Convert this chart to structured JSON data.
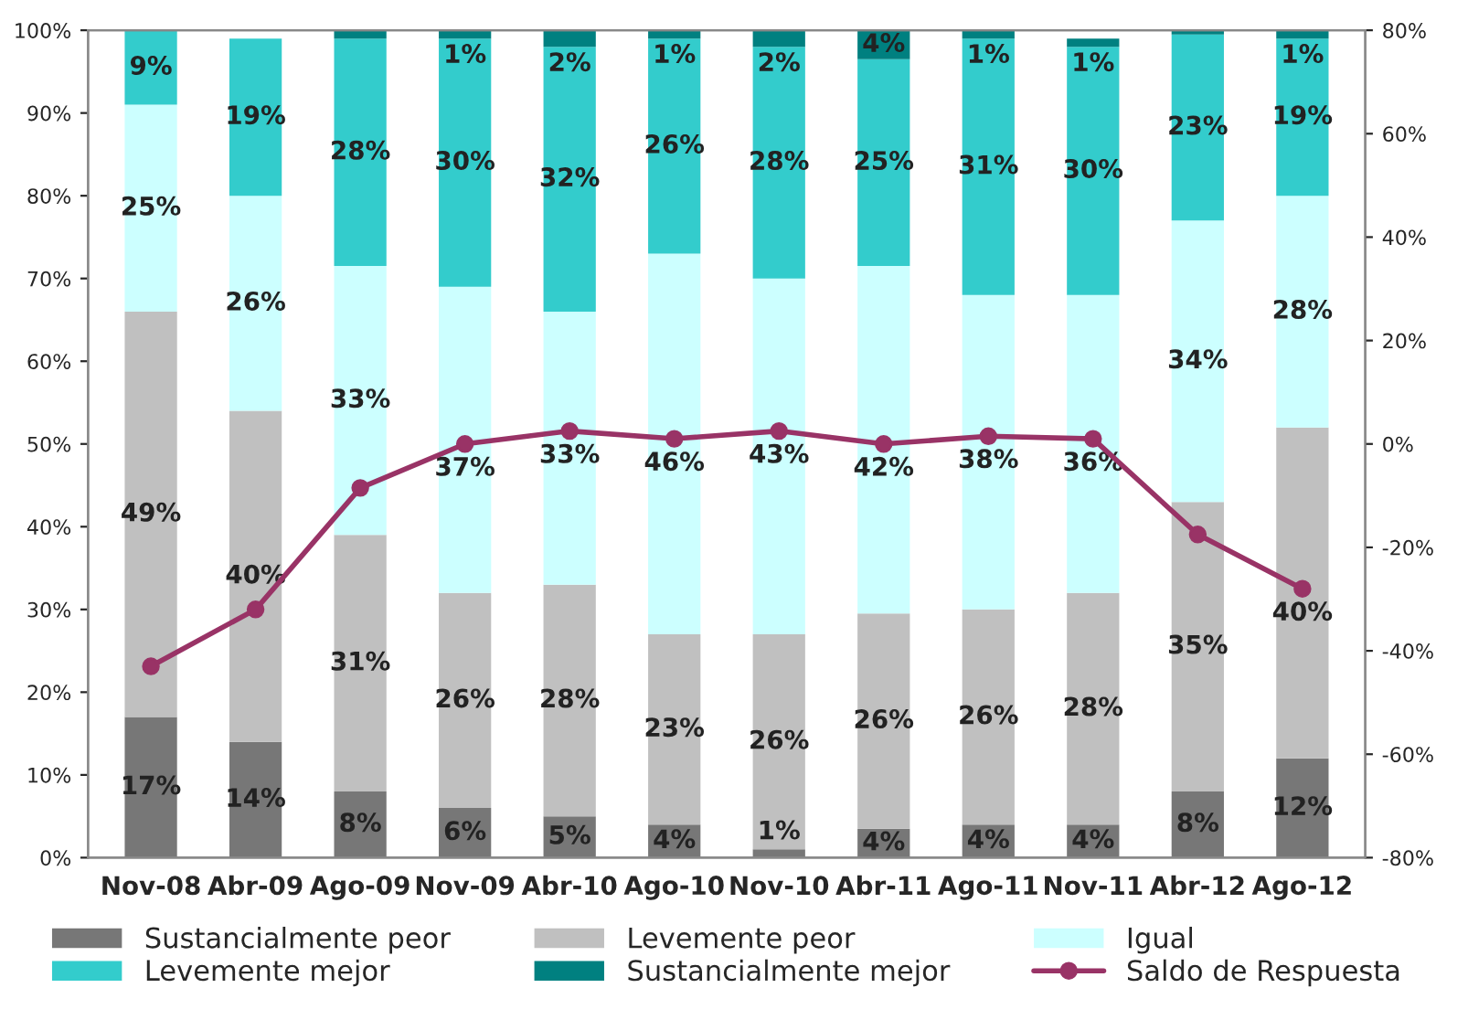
{
  "chart_data": {
    "type": "bar",
    "stacked": true,
    "categories": [
      "Nov-08",
      "Abr-09",
      "Ago-09",
      "Nov-09",
      "Abr-10",
      "Ago-10",
      "Nov-10",
      "Abr-11",
      "Ago-11",
      "Nov-11",
      "Abr-12",
      "Ago-12"
    ],
    "series": [
      {
        "name": "Sustancialmente peor",
        "color": "#777777",
        "values": [
          17,
          14,
          8,
          6,
          5,
          4,
          1,
          3.5,
          4,
          4,
          8,
          12
        ],
        "value_labels": [
          "17%",
          "14%",
          "8%",
          "6%",
          "5%",
          "4%",
          "1%",
          "4%",
          "4%",
          "4%",
          "8%",
          "12%"
        ]
      },
      {
        "name": "Levemente peor",
        "color": "#c0c0c0",
        "values": [
          49,
          40,
          31,
          26,
          28,
          23,
          26,
          26,
          26,
          28,
          35,
          40
        ],
        "value_labels": [
          "49%",
          "40%",
          "31%",
          "26%",
          "28%",
          "23%",
          "26%",
          "26%",
          "26%",
          "28%",
          "35%",
          "40%"
        ]
      },
      {
        "name": "Igual",
        "color": "#ccffff",
        "values": [
          25,
          26,
          32.5,
          37,
          33,
          46,
          43,
          42,
          38,
          36,
          34,
          28
        ],
        "value_labels": [
          "25%",
          "26%",
          "33%",
          "37%",
          "33%",
          "46%",
          "43%",
          "42%",
          "38%",
          "36%",
          "34%",
          "28%"
        ]
      },
      {
        "name": "Levemente mejor",
        "color": "#33cccc",
        "values": [
          9,
          19,
          27.5,
          30,
          32,
          26,
          28,
          25,
          31,
          30,
          22.5,
          19
        ],
        "value_labels": [
          "9%",
          "19%",
          "28%",
          "30%",
          "32%",
          "26%",
          "28%",
          "25%",
          "31%",
          "30%",
          "23%",
          "19%"
        ]
      },
      {
        "name": "Sustancialmente mejor",
        "color": "#008080",
        "values": [
          0,
          0,
          1,
          1,
          2,
          1,
          2,
          3.5,
          1,
          1,
          0.5,
          1
        ],
        "value_labels": [
          null,
          null,
          null,
          "1%",
          "2%",
          "1%",
          "2%",
          "4%",
          "1%",
          "1%",
          null,
          "1%"
        ]
      },
      {
        "name": "Saldo de Respuesta",
        "type": "line",
        "axis": "y2",
        "marker": "circle",
        "color": "#993366",
        "values": [
          -43,
          -32,
          -8.5,
          0,
          2.5,
          1,
          2.5,
          0,
          1.5,
          1,
          -17.5,
          -28
        ]
      }
    ],
    "ylim": [
      0,
      100
    ],
    "yticks": [
      {
        "value": 0,
        "label": "0%"
      },
      {
        "value": 10,
        "label": "10%"
      },
      {
        "value": 20,
        "label": "20%"
      },
      {
        "value": 30,
        "label": "30%"
      },
      {
        "value": 40,
        "label": "40%"
      },
      {
        "value": 50,
        "label": "50%"
      },
      {
        "value": 60,
        "label": "60%"
      },
      {
        "value": 70,
        "label": "70%"
      },
      {
        "value": 80,
        "label": "80%"
      },
      {
        "value": 90,
        "label": "90%"
      },
      {
        "value": 100,
        "label": "100%"
      }
    ],
    "y2lim": [
      -80,
      80
    ],
    "y2ticks": [
      {
        "value": -80,
        "label": "-80%"
      },
      {
        "value": -60,
        "label": "-60%"
      },
      {
        "value": -40,
        "label": "-40%"
      },
      {
        "value": -20,
        "label": "-20%"
      },
      {
        "value": 0,
        "label": "0%"
      },
      {
        "value": 20,
        "label": "20%"
      },
      {
        "value": 40,
        "label": "40%"
      },
      {
        "value": 60,
        "label": "60%"
      },
      {
        "value": 80,
        "label": "80%"
      }
    ],
    "legend": "bottom",
    "grid": false
  }
}
